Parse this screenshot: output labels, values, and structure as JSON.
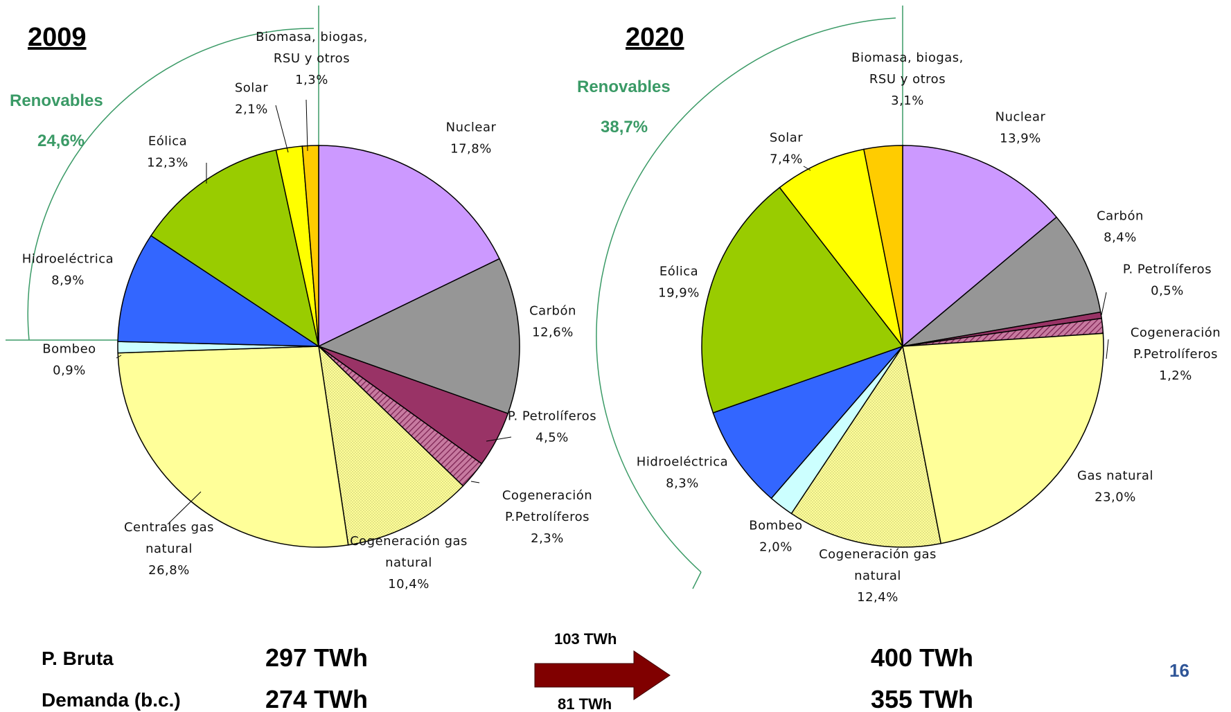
{
  "chart_data": [
    {
      "type": "pie",
      "title": "2009",
      "renovables_label": "Renovables",
      "renovables_value": "24,6%",
      "slices": [
        {
          "label": [
            "Nuclear"
          ],
          "pct": "17,8%",
          "value": 17.8,
          "color": "#cc99ff",
          "pattern": false
        },
        {
          "label": [
            "Carbón"
          ],
          "pct": "12,6%",
          "value": 12.6,
          "color": "#969696",
          "pattern": false
        },
        {
          "label": [
            "P. Petrolíferos"
          ],
          "pct": "4,5%",
          "value": 4.5,
          "color": "#993366",
          "pattern": false
        },
        {
          "label": [
            "Cogeneración",
            "P.Petrolíferos"
          ],
          "pct": "2,3%",
          "value": 2.3,
          "color": "#993366",
          "pattern": true
        },
        {
          "label": [
            "Cogeneración gas",
            "natural"
          ],
          "pct": "10,4%",
          "value": 10.4,
          "color": "#ffff99",
          "pattern": true
        },
        {
          "label": [
            "Centrales gas",
            "natural"
          ],
          "pct": "26,8%",
          "value": 26.8,
          "color": "#ffff99",
          "pattern": false
        },
        {
          "label": [
            "Bombeo"
          ],
          "pct": "0,9%",
          "value": 0.9,
          "color": "#ccffff",
          "pattern": false
        },
        {
          "label": [
            "Hidroeléctrica"
          ],
          "pct": "8,9%",
          "value": 8.9,
          "color": "#3366ff",
          "pattern": false
        },
        {
          "label": [
            "Eólica"
          ],
          "pct": "12,3%",
          "value": 12.3,
          "color": "#99cc00",
          "pattern": false
        },
        {
          "label": [
            "Solar"
          ],
          "pct": "2,1%",
          "value": 2.1,
          "color": "#ffff00",
          "pattern": false
        },
        {
          "label": [
            "Biomasa, biogas,",
            "RSU y otros"
          ],
          "pct": "1,3%",
          "value": 1.3,
          "color": "#ffcc00",
          "pattern": false
        }
      ]
    },
    {
      "type": "pie",
      "title": "2020",
      "renovables_label": "Renovables",
      "renovables_value": "38,7%",
      "slices": [
        {
          "label": [
            "Nuclear"
          ],
          "pct": "13,9%",
          "value": 13.9,
          "color": "#cc99ff",
          "pattern": false
        },
        {
          "label": [
            "Carbón"
          ],
          "pct": "8,4%",
          "value": 8.4,
          "color": "#969696",
          "pattern": false
        },
        {
          "label": [
            "P. Petrolíferos"
          ],
          "pct": "0,5%",
          "value": 0.5,
          "color": "#993366",
          "pattern": false
        },
        {
          "label": [
            "Cogeneración",
            "P.Petrolíferos"
          ],
          "pct": "1,2%",
          "value": 1.2,
          "color": "#993366",
          "pattern": true
        },
        {
          "label": [
            "Gas natural"
          ],
          "pct": "23,0%",
          "value": 23.0,
          "color": "#ffff99",
          "pattern": false
        },
        {
          "label": [
            "Cogeneración gas",
            "natural"
          ],
          "pct": "12,4%",
          "value": 12.4,
          "color": "#ffff99",
          "pattern": true
        },
        {
          "label": [
            "Bombeo"
          ],
          "pct": "2,0%",
          "value": 2.0,
          "color": "#ccffff",
          "pattern": false
        },
        {
          "label": [
            "Hidroeléctrica"
          ],
          "pct": "8,3%",
          "value": 8.3,
          "color": "#3366ff",
          "pattern": false
        },
        {
          "label": [
            "Eólica"
          ],
          "pct": "19,9%",
          "value": 19.9,
          "color": "#99cc00",
          "pattern": false
        },
        {
          "label": [
            "Solar"
          ],
          "pct": "7,4%",
          "value": 7.4,
          "color": "#ffff00",
          "pattern": false
        },
        {
          "label": [
            "Biomasa, biogas,",
            "RSU y otros"
          ],
          "pct": "3,1%",
          "value": 3.1,
          "color": "#ffcc00",
          "pattern": false
        }
      ]
    }
  ],
  "footer": {
    "p_bruta_label": "P. Bruta",
    "demanda_label": "Demanda (b.c.)",
    "p_bruta_2009": "297 TWh",
    "demanda_2009": "274 TWh",
    "p_bruta_2020": "400 TWh",
    "demanda_2020": "355 TWh",
    "arrow_top": "103 TWh",
    "arrow_bottom": "81 TWh",
    "arrow_color": "#800000"
  },
  "page_number": "16",
  "colors": {
    "renovables": "#3a9a66",
    "page_number": "#2f5597"
  }
}
